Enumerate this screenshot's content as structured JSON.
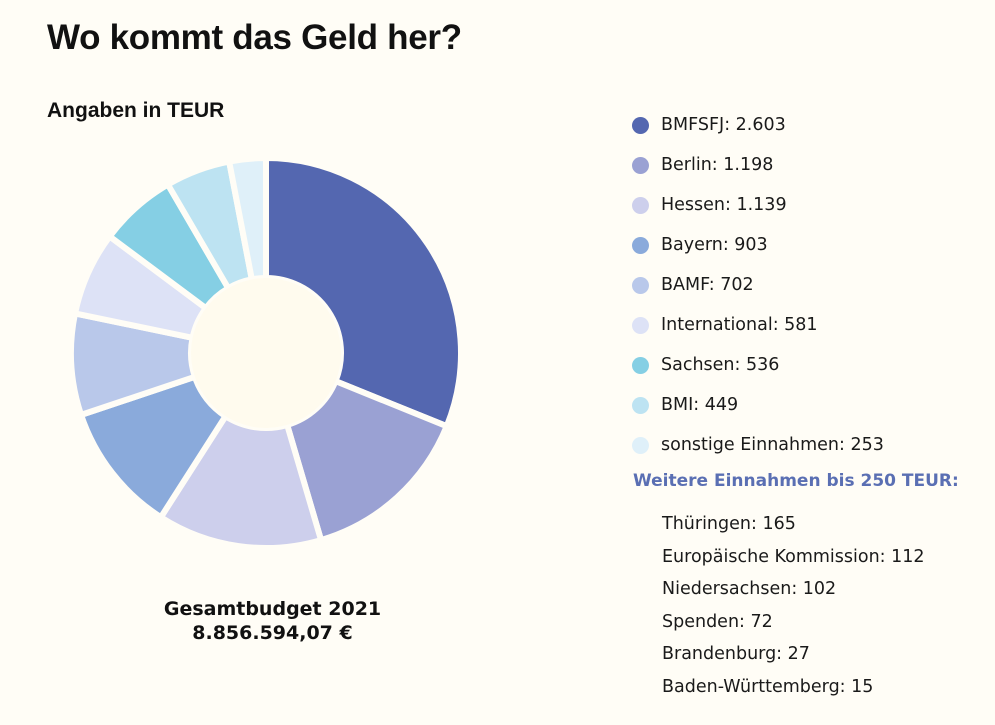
{
  "title": "Wo kommt das Geld her?",
  "subtitle": "Angaben in TEUR",
  "total": {
    "label": "Gesamtbudget 2021",
    "value": "8.856.594,07 €"
  },
  "chart_data": {
    "type": "pie",
    "variant": "donut",
    "title": "Wo kommt das Geld her?",
    "subtitle": "Angaben in TEUR",
    "unit": "TEUR",
    "categories": [
      "BMFSFJ",
      "Berlin",
      "Hessen",
      "Bayern",
      "BAMF",
      "International",
      "Sachsen",
      "BMI",
      "sonstige Einnahmen"
    ],
    "values": [
      2603,
      1198,
      1139,
      903,
      702,
      581,
      536,
      449,
      253
    ],
    "legend_labels": [
      "BMFSFJ: 2.603",
      "Berlin: 1.198",
      "Hessen: 1.139",
      "Bayern: 903",
      "BAMF: 702",
      "International: 581",
      "Sachsen: 536",
      "BMI: 449",
      "sonstige Einnahmen: 253"
    ],
    "colors": [
      "#5467b0",
      "#9aa1d3",
      "#cdcfec",
      "#8aaadb",
      "#b9c8ea",
      "#dde2f6",
      "#85cfe4",
      "#bde3f2",
      "#dff0f9"
    ],
    "legend_position": "right",
    "start": "top",
    "direction": "clockwise",
    "hole_color": "#fffbee"
  },
  "more": {
    "heading": "Weitere Einnahmen bis 250 TEUR:",
    "items": [
      "Thüringen: 165",
      "Europäische Kommission: 112",
      "Niedersachsen: 102",
      "Spenden: 72",
      "Brandenburg: 27",
      "Baden-Württemberg: 15"
    ]
  }
}
